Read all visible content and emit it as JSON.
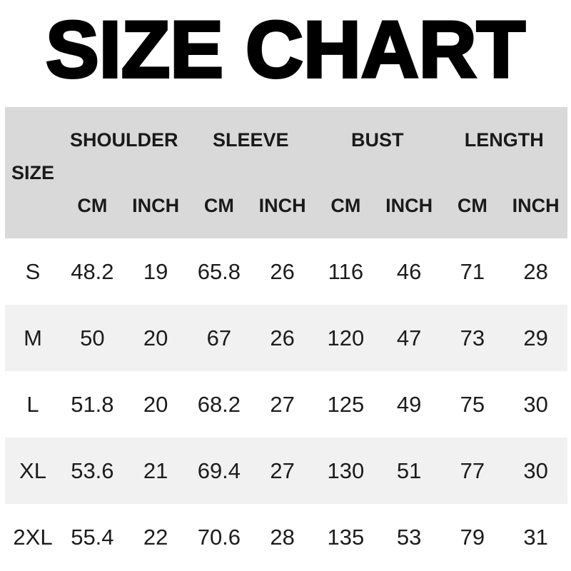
{
  "title": "SIZE CHART",
  "table": {
    "size_header": "SIZE",
    "groups": [
      {
        "label": "SHOULDER"
      },
      {
        "label": "SLEEVE"
      },
      {
        "label": "BUST"
      },
      {
        "label": "LENGTH"
      }
    ],
    "unit_headers": [
      "CM",
      "INCH",
      "CM",
      "INCH",
      "CM",
      "INCH",
      "CM",
      "INCH"
    ],
    "rows": [
      {
        "size": "S",
        "values": [
          "48.2",
          "19",
          "65.8",
          "26",
          "116",
          "46",
          "71",
          "28"
        ]
      },
      {
        "size": "M",
        "values": [
          "50",
          "20",
          "67",
          "26",
          "120",
          "47",
          "73",
          "29"
        ]
      },
      {
        "size": "L",
        "values": [
          "51.8",
          "20",
          "68.2",
          "27",
          "125",
          "49",
          "75",
          "30"
        ]
      },
      {
        "size": "XL",
        "values": [
          "53.6",
          "21",
          "69.4",
          "27",
          "130",
          "51",
          "77",
          "30"
        ]
      },
      {
        "size": "2XL",
        "values": [
          "55.4",
          "22",
          "70.6",
          "28",
          "135",
          "53",
          "79",
          "31"
        ]
      }
    ]
  },
  "colors": {
    "header_bg": "#d9d9d9",
    "row_alt_bg": "#f1f1f1",
    "row_bg": "#ffffff",
    "text": "#1a1a1a"
  },
  "chart_data": {
    "type": "table",
    "title": "SIZE CHART",
    "columns": [
      "SIZE",
      "SHOULDER CM",
      "SHOULDER INCH",
      "SLEEVE CM",
      "SLEEVE INCH",
      "BUST CM",
      "BUST INCH",
      "LENGTH CM",
      "LENGTH INCH"
    ],
    "rows": [
      [
        "S",
        48.2,
        19,
        65.8,
        26,
        116,
        46,
        71,
        28
      ],
      [
        "M",
        50,
        20,
        67,
        26,
        120,
        47,
        73,
        29
      ],
      [
        "L",
        51.8,
        20,
        68.2,
        27,
        125,
        49,
        75,
        30
      ],
      [
        "XL",
        53.6,
        21,
        69.4,
        27,
        130,
        51,
        77,
        30
      ],
      [
        "2XL",
        55.4,
        22,
        70.6,
        28,
        135,
        53,
        79,
        31
      ]
    ]
  }
}
